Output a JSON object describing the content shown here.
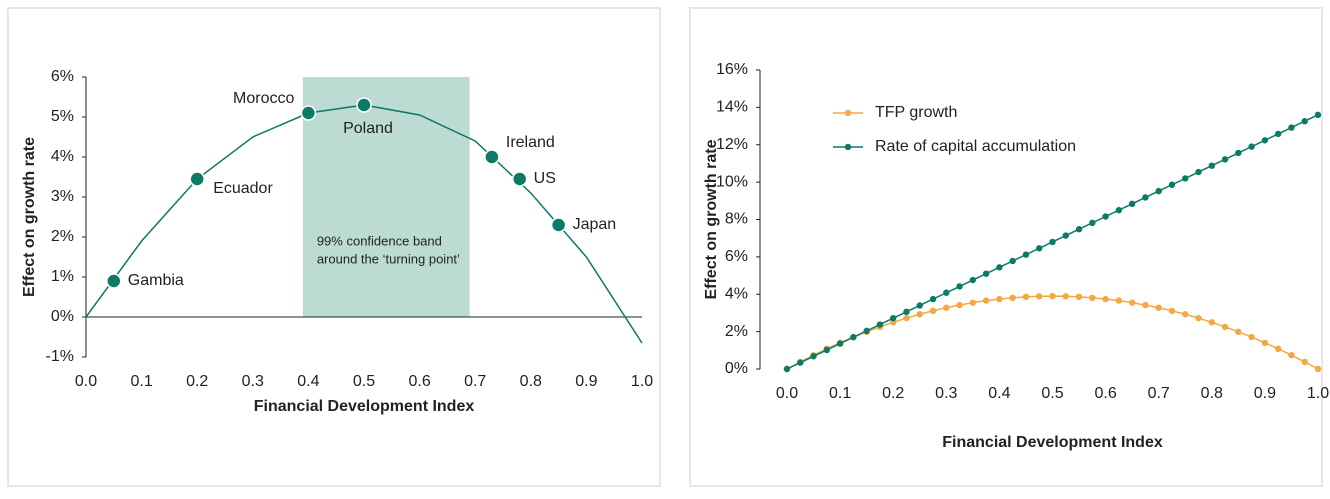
{
  "chart_data": [
    {
      "type": "scatter",
      "x_label": "Financial Development Index",
      "y_label": "Effect on growth rate",
      "xlim": [
        0,
        1
      ],
      "ylim": [
        -1,
        6
      ],
      "xticks": [
        {
          "value": 0,
          "label": "0.0"
        },
        0.1,
        0.2,
        0.3,
        0.4,
        0.5,
        0.6,
        0.7,
        0.8,
        0.9,
        {
          "value": 1,
          "label": "1.0"
        }
      ],
      "yticks": [
        {
          "value": -1,
          "label": "-1%"
        },
        {
          "value": 0,
          "label": "0%"
        },
        {
          "value": 1,
          "label": "1%"
        },
        {
          "value": 2,
          "label": "2%"
        },
        {
          "value": 3,
          "label": "3%"
        },
        {
          "value": 4,
          "label": "4%"
        },
        {
          "value": 5,
          "label": "5%"
        },
        {
          "value": 6,
          "label": "6%"
        }
      ],
      "color": "#0b7a66",
      "band_color": "#bcdcd3",
      "points": {
        "labels": [
          "Gambia",
          "Ecuador",
          "Morocco",
          "Poland",
          "Ireland",
          "US",
          "Japan"
        ],
        "x": [
          0.05,
          0.2,
          0.4,
          0.5,
          0.73,
          0.78,
          0.85
        ],
        "y": [
          0.9,
          3.45,
          5.1,
          5.3,
          4.0,
          3.45,
          2.3
        ]
      },
      "curve": {
        "x": [
          0,
          0.1,
          0.2,
          0.3,
          0.4,
          0.5,
          0.6,
          0.7,
          0.8,
          0.9,
          1.0
        ],
        "y": [
          0,
          1.9,
          3.45,
          4.5,
          5.1,
          5.3,
          5.05,
          4.4,
          3.1,
          1.5,
          -0.65
        ]
      },
      "band": [
        0.39,
        0.69
      ],
      "annotation": [
        "99% confidence band",
        "around the ‘turning point’"
      ]
    },
    {
      "type": "line",
      "x_label": "Financial Development Index",
      "y_label": "Effect on growth rate",
      "xlim": [
        0,
        1
      ],
      "ylim": [
        0,
        16
      ],
      "xticks": [
        {
          "value": 0,
          "label": "0.0"
        },
        0.1,
        0.2,
        0.3,
        0.4,
        0.5,
        0.6,
        0.7,
        0.8,
        0.9,
        {
          "value": 1,
          "label": "1.0"
        }
      ],
      "yticks": [
        {
          "value": 0,
          "label": "0%"
        },
        {
          "value": 2,
          "label": "2%"
        },
        {
          "value": 4,
          "label": "4%"
        },
        {
          "value": 6,
          "label": "6%"
        },
        {
          "value": 8,
          "label": "8%"
        },
        {
          "value": 10,
          "label": "10%"
        },
        {
          "value": 12,
          "label": "12%"
        },
        {
          "value": 14,
          "label": "14%"
        },
        {
          "value": 16,
          "label": "16%"
        }
      ],
      "x": [
        0,
        0.025,
        0.05,
        0.075,
        0.1,
        0.125,
        0.15,
        0.175,
        0.2,
        0.225,
        0.25,
        0.275,
        0.3,
        0.325,
        0.35,
        0.375,
        0.4,
        0.425,
        0.45,
        0.475,
        0.5,
        0.525,
        0.55,
        0.575,
        0.6,
        0.625,
        0.65,
        0.675,
        0.7,
        0.725,
        0.75,
        0.775,
        0.8,
        0.825,
        0.85,
        0.875,
        0.9,
        0.925,
        0.95,
        0.975,
        1.0
      ],
      "series": [
        {
          "name": "TFP growth",
          "color": "#f5a742",
          "values": [
            0,
            0.38,
            0.74,
            1.08,
            1.4,
            1.71,
            1.99,
            2.25,
            2.5,
            2.72,
            2.93,
            3.11,
            3.28,
            3.42,
            3.55,
            3.66,
            3.74,
            3.81,
            3.86,
            3.89,
            3.9,
            3.89,
            3.86,
            3.81,
            3.74,
            3.66,
            3.55,
            3.42,
            3.28,
            3.11,
            2.93,
            2.72,
            2.5,
            2.25,
            1.99,
            1.71,
            1.4,
            1.08,
            0.74,
            0.38,
            0
          ]
        },
        {
          "name": "Rate of capital accumulation",
          "color": "#0b7a66",
          "values": [
            0,
            0.34,
            0.68,
            1.02,
            1.36,
            1.7,
            2.04,
            2.38,
            2.72,
            3.06,
            3.4,
            3.74,
            4.08,
            4.42,
            4.76,
            5.1,
            5.44,
            5.78,
            6.12,
            6.46,
            6.8,
            7.14,
            7.48,
            7.82,
            8.16,
            8.5,
            8.84,
            9.18,
            9.52,
            9.86,
            10.2,
            10.54,
            10.88,
            11.22,
            11.56,
            11.9,
            12.24,
            12.58,
            12.92,
            13.26,
            13.6
          ]
        }
      ]
    }
  ]
}
